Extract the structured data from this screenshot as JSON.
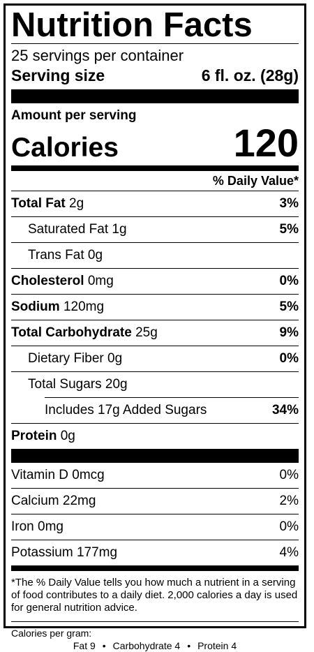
{
  "title": "Nutrition Facts",
  "servings_per_container": "25 servings per container",
  "serving_size_label": "Serving size",
  "serving_size_value": "6 fl. oz. (28g)",
  "amount_per_serving": "Amount per serving",
  "calories_label": "Calories",
  "calories_value": "120",
  "daily_value_header": "% Daily Value*",
  "nutrients": [
    {
      "name": "Total Fat",
      "amount": "2g",
      "dv": "3%"
    },
    {
      "name": "Saturated Fat",
      "amount": "1g",
      "dv": "5%"
    },
    {
      "name": "Trans Fat",
      "amount": "0g",
      "dv": ""
    },
    {
      "name": "Cholesterol",
      "amount": "0mg",
      "dv": "0%"
    },
    {
      "name": "Sodium",
      "amount": "120mg",
      "dv": "5%"
    },
    {
      "name": "Total Carbohydrate",
      "amount": "25g",
      "dv": "9%"
    },
    {
      "name": "Dietary Fiber",
      "amount": "0g",
      "dv": "0%"
    },
    {
      "name": "Total Sugars",
      "amount": "20g",
      "dv": ""
    },
    {
      "name": "Includes 17g Added Sugars",
      "amount": "",
      "dv": "34%"
    },
    {
      "name": "Protein",
      "amount": "0g",
      "dv": ""
    }
  ],
  "minerals": [
    {
      "name": "Vitamin D 0mcg",
      "dv": "0%"
    },
    {
      "name": "Calcium 22mg",
      "dv": "2%"
    },
    {
      "name": "Iron 0mg",
      "dv": "0%"
    },
    {
      "name": "Potassium 177mg",
      "dv": "4%"
    }
  ],
  "footnote": "*The % Daily Value tells you how much a nutrient in a serving of food contributes to a daily diet. 2,000 calories a day is used for general nutrition advice.",
  "calories_per_gram_label": "Calories per gram:",
  "calories_per_gram": {
    "fat": "Fat 9",
    "carbohydrate": "Carbohydrate 4",
    "protein": "Protein 4",
    "separator": "•"
  }
}
